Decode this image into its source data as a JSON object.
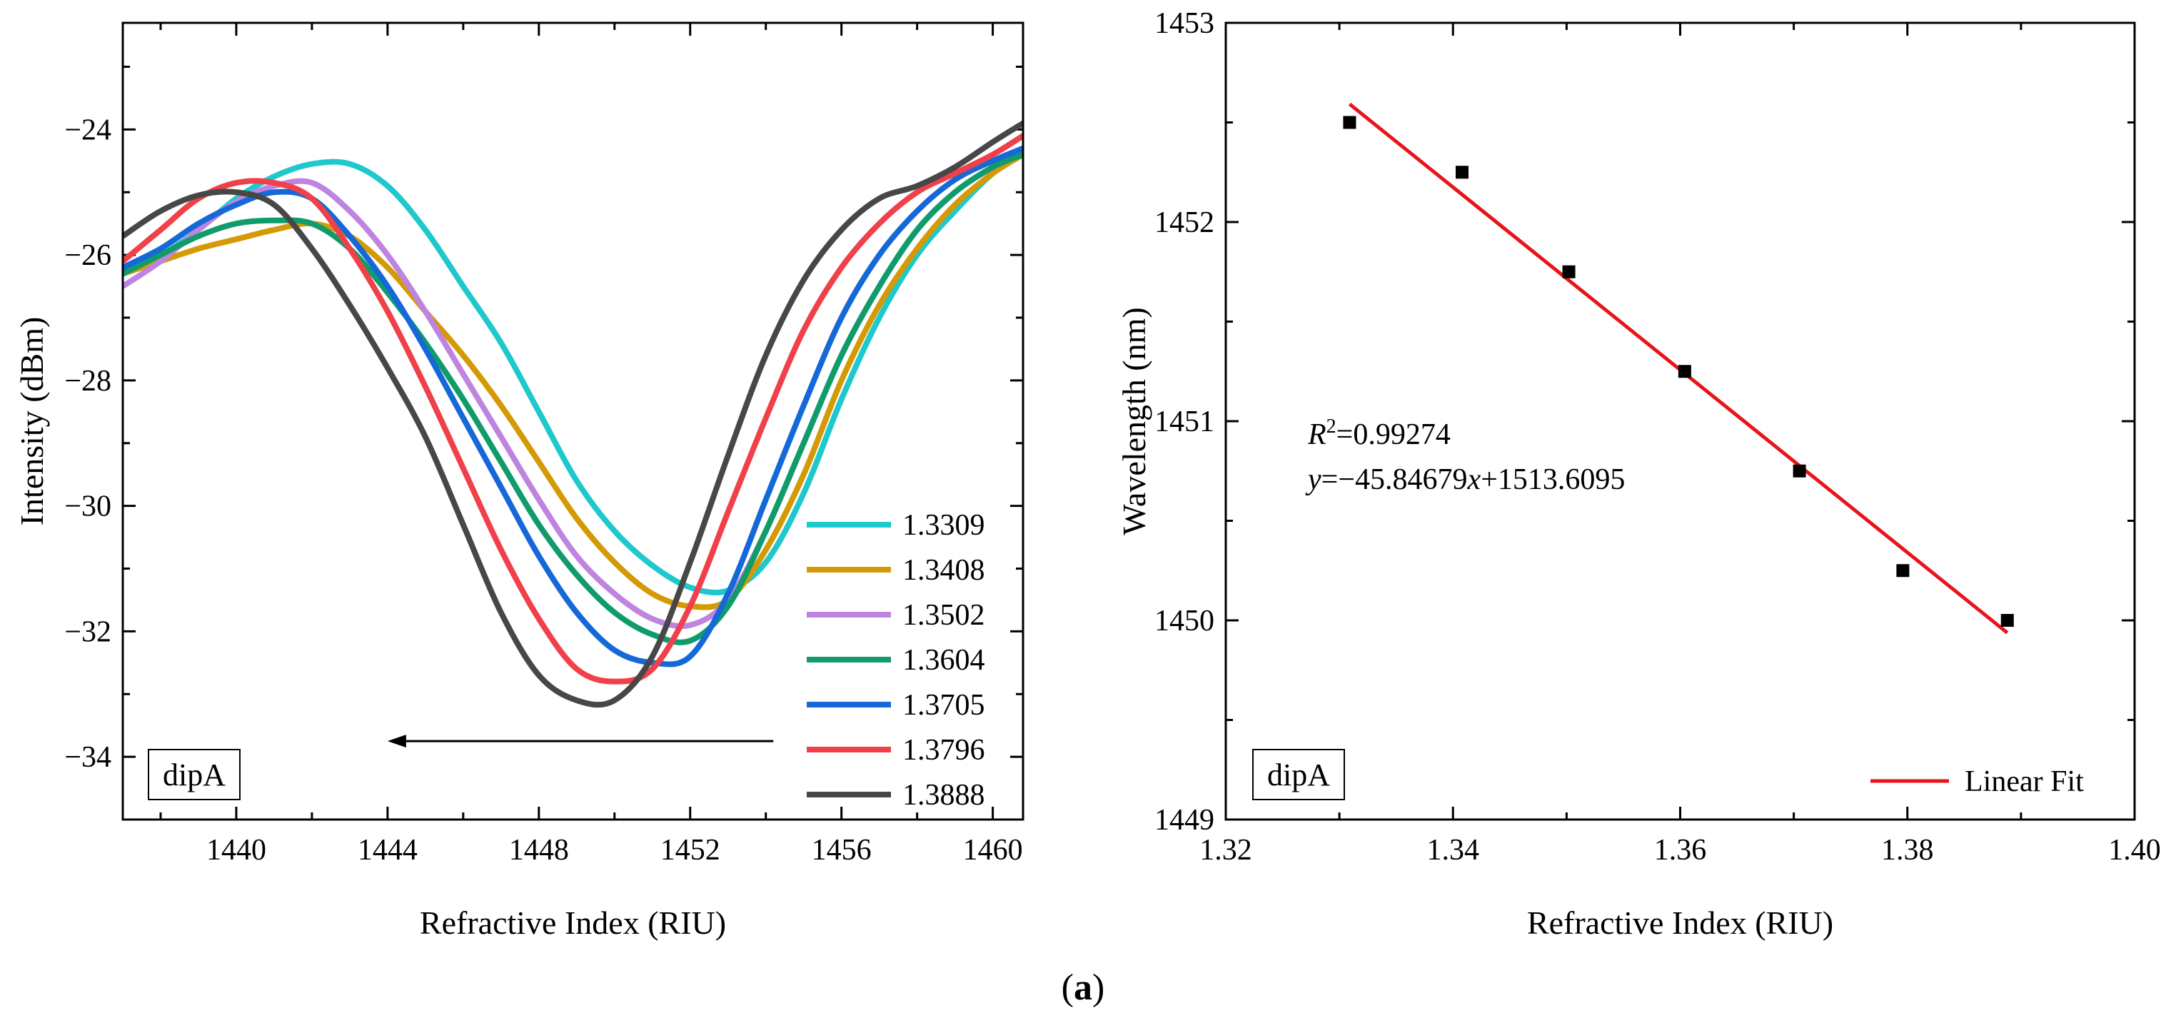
{
  "chart_data": [
    {
      "type": "line",
      "panel": "left",
      "xlabel": "Refractive Index (RIU)",
      "ylabel": "Intensity (dBm)",
      "xlim": [
        1437,
        1460.8
      ],
      "ylim": [
        -35,
        -22.3
      ],
      "xticks": [
        1440,
        1444,
        1448,
        1452,
        1456,
        1460
      ],
      "yticks": [
        -34,
        -32,
        -30,
        -28,
        -26,
        -24
      ],
      "box_label": "dipA",
      "arrow": {
        "from_x": 1454.2,
        "to_x": 1444,
        "y": -33.75
      },
      "series": [
        {
          "name": "1.3309",
          "color": "#1EC8CC",
          "points": [
            [
              1437,
              -26.2
            ],
            [
              1438,
              -26.0
            ],
            [
              1439,
              -25.6
            ],
            [
              1440,
              -25.1
            ],
            [
              1441,
              -24.75
            ],
            [
              1442,
              -24.55
            ],
            [
              1443,
              -24.55
            ],
            [
              1444,
              -24.9
            ],
            [
              1445,
              -25.6
            ],
            [
              1446,
              -26.5
            ],
            [
              1447,
              -27.4
            ],
            [
              1448,
              -28.5
            ],
            [
              1449,
              -29.6
            ],
            [
              1450,
              -30.4
            ],
            [
              1451,
              -30.95
            ],
            [
              1452,
              -31.3
            ],
            [
              1453,
              -31.35
            ],
            [
              1454,
              -30.9
            ],
            [
              1455,
              -29.8
            ],
            [
              1456,
              -28.3
            ],
            [
              1457,
              -27.0
            ],
            [
              1458,
              -26.0
            ],
            [
              1459,
              -25.3
            ],
            [
              1460,
              -24.7
            ],
            [
              1460.8,
              -24.4
            ]
          ]
        },
        {
          "name": "1.3408",
          "color": "#D49A06",
          "points": [
            [
              1437,
              -26.3
            ],
            [
              1438,
              -26.1
            ],
            [
              1439,
              -25.9
            ],
            [
              1440,
              -25.75
            ],
            [
              1441,
              -25.6
            ],
            [
              1442,
              -25.5
            ],
            [
              1443,
              -25.7
            ],
            [
              1444,
              -26.2
            ],
            [
              1445,
              -26.9
            ],
            [
              1446,
              -27.6
            ],
            [
              1447,
              -28.4
            ],
            [
              1448,
              -29.3
            ],
            [
              1449,
              -30.2
            ],
            [
              1450,
              -30.9
            ],
            [
              1451,
              -31.4
            ],
            [
              1452,
              -31.6
            ],
            [
              1453,
              -31.5
            ],
            [
              1454,
              -30.7
            ],
            [
              1455,
              -29.5
            ],
            [
              1456,
              -28.0
            ],
            [
              1457,
              -26.8
            ],
            [
              1458,
              -25.9
            ],
            [
              1459,
              -25.2
            ],
            [
              1460,
              -24.7
            ],
            [
              1460.8,
              -24.4
            ]
          ]
        },
        {
          "name": "1.3502",
          "color": "#BF84E0",
          "points": [
            [
              1437,
              -26.5
            ],
            [
              1438,
              -26.1
            ],
            [
              1439,
              -25.6
            ],
            [
              1440,
              -25.15
            ],
            [
              1441,
              -24.9
            ],
            [
              1442,
              -24.85
            ],
            [
              1443,
              -25.3
            ],
            [
              1444,
              -26.0
            ],
            [
              1445,
              -26.9
            ],
            [
              1446,
              -27.9
            ],
            [
              1447,
              -28.9
            ],
            [
              1448,
              -29.9
            ],
            [
              1449,
              -30.8
            ],
            [
              1450,
              -31.4
            ],
            [
              1451,
              -31.8
            ],
            [
              1452,
              -31.9
            ],
            [
              1453,
              -31.5
            ],
            [
              1454,
              -30.4
            ],
            [
              1455,
              -29.0
            ],
            [
              1456,
              -27.6
            ],
            [
              1457,
              -26.5
            ],
            [
              1458,
              -25.6
            ],
            [
              1459,
              -25.0
            ],
            [
              1460,
              -24.6
            ],
            [
              1460.8,
              -24.3
            ]
          ]
        },
        {
          "name": "1.3604",
          "color": "#109C6A",
          "points": [
            [
              1437,
              -26.3
            ],
            [
              1438,
              -26.0
            ],
            [
              1439,
              -25.7
            ],
            [
              1440,
              -25.5
            ],
            [
              1441,
              -25.45
            ],
            [
              1442,
              -25.5
            ],
            [
              1443,
              -25.9
            ],
            [
              1444,
              -26.6
            ],
            [
              1445,
              -27.4
            ],
            [
              1446,
              -28.3
            ],
            [
              1447,
              -29.3
            ],
            [
              1448,
              -30.3
            ],
            [
              1449,
              -31.1
            ],
            [
              1450,
              -31.7
            ],
            [
              1451,
              -32.05
            ],
            [
              1452,
              -32.15
            ],
            [
              1453,
              -31.6
            ],
            [
              1454,
              -30.4
            ],
            [
              1455,
              -29.0
            ],
            [
              1456,
              -27.6
            ],
            [
              1457,
              -26.5
            ],
            [
              1458,
              -25.6
            ],
            [
              1459,
              -25.0
            ],
            [
              1460,
              -24.6
            ],
            [
              1460.8,
              -24.4
            ]
          ]
        },
        {
          "name": "1.3705",
          "color": "#1568D8",
          "points": [
            [
              1437,
              -26.2
            ],
            [
              1438,
              -25.9
            ],
            [
              1439,
              -25.5
            ],
            [
              1440,
              -25.2
            ],
            [
              1441,
              -25.0
            ],
            [
              1442,
              -25.1
            ],
            [
              1443,
              -25.7
            ],
            [
              1444,
              -26.5
            ],
            [
              1445,
              -27.5
            ],
            [
              1446,
              -28.6
            ],
            [
              1447,
              -29.7
            ],
            [
              1448,
              -30.8
            ],
            [
              1449,
              -31.7
            ],
            [
              1450,
              -32.3
            ],
            [
              1451,
              -32.5
            ],
            [
              1452,
              -32.4
            ],
            [
              1453,
              -31.4
            ],
            [
              1454,
              -29.9
            ],
            [
              1455,
              -28.4
            ],
            [
              1456,
              -27.0
            ],
            [
              1457,
              -26.0
            ],
            [
              1458,
              -25.3
            ],
            [
              1459,
              -24.8
            ],
            [
              1460,
              -24.5
            ],
            [
              1460.8,
              -24.3
            ]
          ]
        },
        {
          "name": "1.3796",
          "color": "#F0404A",
          "points": [
            [
              1437,
              -26.1
            ],
            [
              1438,
              -25.6
            ],
            [
              1439,
              -25.1
            ],
            [
              1440,
              -24.85
            ],
            [
              1441,
              -24.85
            ],
            [
              1442,
              -25.1
            ],
            [
              1443,
              -25.9
            ],
            [
              1444,
              -26.9
            ],
            [
              1445,
              -28.1
            ],
            [
              1446,
              -29.4
            ],
            [
              1447,
              -30.7
            ],
            [
              1448,
              -31.8
            ],
            [
              1449,
              -32.6
            ],
            [
              1450,
              -32.8
            ],
            [
              1451,
              -32.6
            ],
            [
              1452,
              -31.6
            ],
            [
              1453,
              -30.1
            ],
            [
              1454,
              -28.6
            ],
            [
              1455,
              -27.2
            ],
            [
              1456,
              -26.2
            ],
            [
              1457,
              -25.5
            ],
            [
              1458,
              -25.0
            ],
            [
              1459,
              -24.7
            ],
            [
              1460,
              -24.4
            ],
            [
              1460.8,
              -24.1
            ]
          ]
        },
        {
          "name": "1.3888",
          "color": "#474747",
          "points": [
            [
              1437,
              -25.7
            ],
            [
              1438,
              -25.3
            ],
            [
              1439,
              -25.05
            ],
            [
              1440,
              -25.0
            ],
            [
              1441,
              -25.2
            ],
            [
              1442,
              -25.9
            ],
            [
              1443,
              -26.8
            ],
            [
              1444,
              -27.8
            ],
            [
              1445,
              -28.9
            ],
            [
              1446,
              -30.3
            ],
            [
              1447,
              -31.7
            ],
            [
              1448,
              -32.7
            ],
            [
              1449,
              -33.1
            ],
            [
              1450,
              -33.1
            ],
            [
              1451,
              -32.4
            ],
            [
              1452,
              -30.9
            ],
            [
              1453,
              -29.2
            ],
            [
              1454,
              -27.6
            ],
            [
              1455,
              -26.4
            ],
            [
              1456,
              -25.6
            ],
            [
              1457,
              -25.1
            ],
            [
              1458,
              -24.9
            ],
            [
              1459,
              -24.6
            ],
            [
              1460,
              -24.2
            ],
            [
              1460.8,
              -23.9
            ]
          ]
        }
      ]
    },
    {
      "type": "scatter",
      "panel": "right",
      "xlabel": "Refractive Index (RIU)",
      "ylabel": "Wavelength (nm)",
      "xlim": [
        1.32,
        1.4
      ],
      "ylim": [
        1449,
        1453
      ],
      "xticks": [
        "1.32",
        "1.34",
        "1.36",
        "1.38",
        "1.40"
      ],
      "yticks": [
        "1449",
        "1450",
        "1451",
        "1452",
        "1453"
      ],
      "box_label": "dipA",
      "points": {
        "x": [
          1.3309,
          1.3408,
          1.3502,
          1.3604,
          1.3705,
          1.3796,
          1.3888
        ],
        "y": [
          1452.5,
          1452.25,
          1451.75,
          1451.25,
          1450.75,
          1450.25,
          1450.0
        ]
      },
      "fit": {
        "name": "Linear Fit",
        "color": "#E8141C",
        "slope": -45.84679,
        "intercept": 1513.6095,
        "x_range": [
          1.3309,
          1.3888
        ]
      },
      "annotation": {
        "r2_symbol": "R",
        "r2_exponent": "2",
        "r2_value": "=0.99274",
        "eq_y": "y",
        "eq_mid": "=−45.84679",
        "eq_x": "x",
        "eq_end": "+1513.6095"
      }
    }
  ],
  "caption": {
    "open": "(",
    "letter": "a",
    "close": ")"
  }
}
